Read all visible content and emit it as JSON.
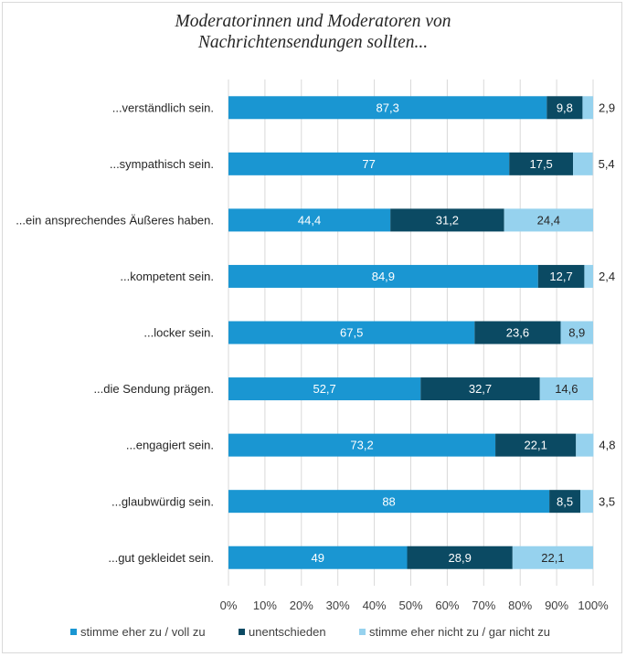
{
  "chart_data": {
    "type": "stacked-bar-horizontal-100",
    "title_line1": "Moderatorinnen und Moderatoren von",
    "title_line2": "Nachrichtensendungen sollten...",
    "categories": [
      "...verständlich sein.",
      "...sympathisch sein.",
      "...ein ansprechendes Äußeres haben.",
      "...kompetent sein.",
      "...locker sein.",
      "...die Sendung prägen.",
      "...engagiert sein.",
      "...glaubwürdig sein.",
      "...gut gekleidet sein."
    ],
    "series": [
      {
        "name": "stimme eher zu / voll zu",
        "color": "#1a96d2",
        "label_color": "#ffffff",
        "values": [
          87.3,
          77,
          44.4,
          84.9,
          67.5,
          52.7,
          73.2,
          88,
          49
        ],
        "labels": [
          "87,3",
          "77",
          "44,4",
          "84,9",
          "67,5",
          "52,7",
          "73,2",
          "88",
          "49"
        ]
      },
      {
        "name": "unentschieden",
        "color": "#0b4a63",
        "label_color": "#ffffff",
        "values": [
          9.8,
          17.5,
          31.2,
          12.7,
          23.6,
          32.7,
          22.1,
          8.5,
          28.9
        ],
        "labels": [
          "9,8",
          "17,5",
          "31,2",
          "12,7",
          "23,6",
          "32,7",
          "22,1",
          "8,5",
          "28,9"
        ]
      },
      {
        "name": "stimme eher nicht zu / gar nicht zu",
        "color": "#96d2ee",
        "label_color": "#262626",
        "values": [
          2.9,
          5.4,
          24.4,
          2.4,
          8.9,
          14.6,
          4.8,
          3.5,
          22.1
        ],
        "labels": [
          "2,9",
          "5,4",
          "24,4",
          "2,4",
          "8,9",
          "14,6",
          "4,8",
          "3,5",
          "22,1"
        ]
      }
    ],
    "xaxis": {
      "min": 0,
      "max": 100,
      "step": 10,
      "tick_labels": [
        "0%",
        "10%",
        "20%",
        "30%",
        "40%",
        "50%",
        "60%",
        "70%",
        "80%",
        "90%",
        "100%"
      ]
    },
    "grid": true,
    "legend": "bottom"
  }
}
